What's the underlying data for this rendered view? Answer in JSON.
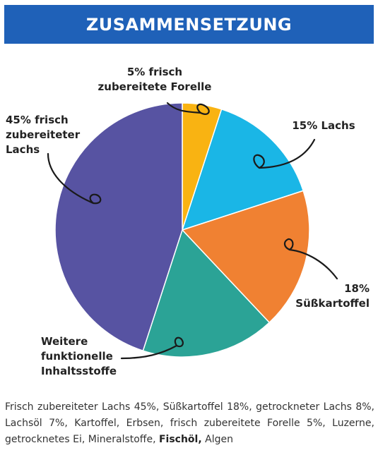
{
  "header": {
    "title": "ZUSAMMENSETZUNG"
  },
  "chart_data": {
    "type": "pie",
    "start_angle_deg": 0,
    "direction": "clockwise",
    "slices": [
      {
        "label_lines": [
          "5% frisch",
          "zubereitete Forelle"
        ],
        "value": 5,
        "color": "#f9b312"
      },
      {
        "label_lines": [
          "15% Lachs"
        ],
        "value": 15,
        "color": "#1ab6e6"
      },
      {
        "label_lines": [
          "18%",
          "Süßkartoffel"
        ],
        "value": 18,
        "color": "#f08132"
      },
      {
        "label_lines": [
          "Weitere",
          "funktionelle",
          "Inhaltsstoffe"
        ],
        "value": 17,
        "color": "#2ba396"
      },
      {
        "label_lines": [
          "45% frisch",
          "zubereiteter",
          "Lachs"
        ],
        "value": 45,
        "color": "#5753a2"
      }
    ]
  },
  "description": {
    "part1": "Frisch zubereiteter Lachs 45%, Süßkartoffel 18%, getrockneter Lachs 8%, Lachsöl 7%, Kartoffel, Erbsen, frisch zubereitete Forelle 5%, Luzerne, getrocknetes Ei, Mineralstoffe, ",
    "bold": "Fischöl,",
    "part2": " Algen"
  }
}
